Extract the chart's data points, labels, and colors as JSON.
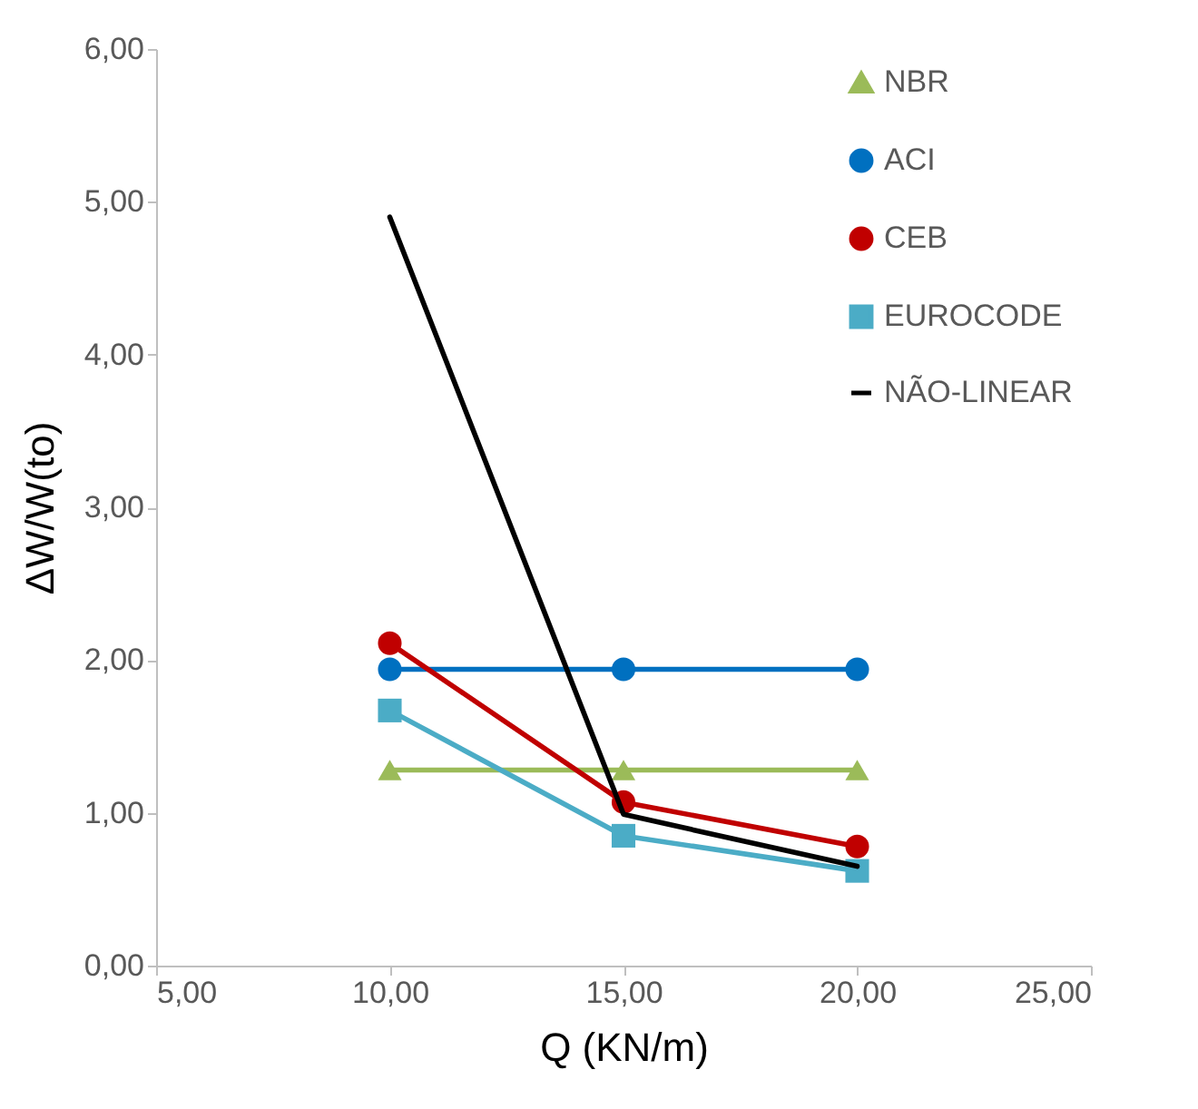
{
  "chart_data": {
    "type": "line",
    "xlabel": "Q (KN/m)",
    "ylabel": "ΔW/W(to)",
    "x": [
      10,
      15,
      20
    ],
    "xlim": [
      5,
      25
    ],
    "ylim": [
      0,
      6
    ],
    "xticks": [
      {
        "value": 5,
        "label": "5,00"
      },
      {
        "value": 10,
        "label": "10,00"
      },
      {
        "value": 15,
        "label": "15,00"
      },
      {
        "value": 20,
        "label": "20,00"
      },
      {
        "value": 25,
        "label": "25,00"
      }
    ],
    "yticks": [
      {
        "value": 0,
        "label": "0,00"
      },
      {
        "value": 1,
        "label": "1,00"
      },
      {
        "value": 2,
        "label": "2,00"
      },
      {
        "value": 3,
        "label": "3,00"
      },
      {
        "value": 4,
        "label": "4,00"
      },
      {
        "value": 5,
        "label": "5,00"
      },
      {
        "value": 6,
        "label": "6,00"
      }
    ],
    "grid": false,
    "legend": "top right",
    "series": [
      {
        "name": "NBR",
        "color": "#9bbb59",
        "marker": "triangle",
        "values": [
          1.28,
          1.28,
          1.28
        ]
      },
      {
        "name": "ACI",
        "color": "#0070c0",
        "marker": "circle",
        "values": [
          1.94,
          1.94,
          1.94
        ]
      },
      {
        "name": "CEB",
        "color": "#c00000",
        "marker": "circle",
        "values": [
          2.11,
          1.07,
          0.78
        ]
      },
      {
        "name": "EUROCODE",
        "color": "#4bacc6",
        "marker": "square",
        "values": [
          1.67,
          0.85,
          0.62
        ]
      },
      {
        "name": "NÃO-LINEAR",
        "color": "#000000",
        "marker": "none",
        "values": [
          4.9,
          0.99,
          0.65
        ]
      }
    ]
  }
}
